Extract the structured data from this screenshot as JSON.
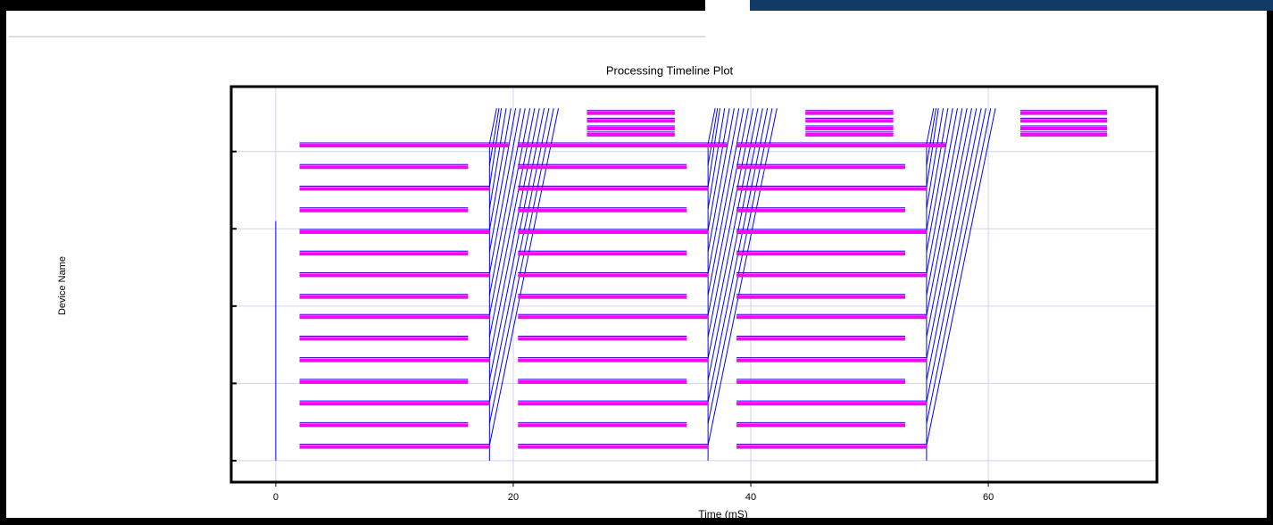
{
  "chart_data": {
    "type": "timeline",
    "title": "Processing Timeline Plot",
    "x_label": "Time (mS)",
    "y_label": "Device Name",
    "xlim": [
      -3.75,
      74.2
    ],
    "xticks": [
      0,
      20,
      40,
      60
    ],
    "ylim": [
      -1.39,
      24.2
    ],
    "yticks": [
      0,
      5,
      10,
      15,
      20
    ],
    "grid": true,
    "bars": {
      "color": "#ff00ff",
      "row": [
        1.0,
        2.4,
        3.8,
        5.2,
        6.6,
        8.0,
        9.4,
        10.7,
        12.1,
        13.5,
        14.9,
        16.3,
        17.7,
        19.1,
        20.5,
        1.0,
        2.4,
        3.8,
        5.2,
        6.6,
        8.0,
        9.4,
        10.7,
        12.1,
        13.5,
        14.9,
        16.3,
        17.7,
        19.1,
        20.5,
        1.0,
        2.4,
        3.8,
        5.2,
        6.6,
        8.0,
        9.4,
        10.7,
        12.1,
        13.5,
        14.9,
        16.3,
        17.7,
        19.1,
        20.5,
        22.6,
        22.1,
        21.6,
        21.2,
        22.6,
        22.1,
        21.6,
        21.2,
        22.6,
        22.1,
        21.6,
        21.2
      ],
      "start": [
        2.0,
        2.0,
        2.0,
        2.0,
        2.0,
        2.0,
        2.0,
        2.0,
        2.0,
        2.0,
        2.0,
        2.0,
        2.0,
        2.0,
        2.0,
        20.4,
        20.4,
        20.4,
        20.4,
        20.4,
        20.4,
        20.4,
        20.4,
        20.4,
        20.4,
        20.4,
        20.4,
        20.4,
        20.4,
        20.4,
        38.8,
        38.8,
        38.8,
        38.8,
        38.8,
        38.8,
        38.8,
        38.8,
        38.8,
        38.8,
        38.8,
        38.8,
        38.8,
        38.8,
        38.8,
        26.2,
        26.2,
        26.2,
        26.2,
        44.6,
        44.6,
        44.6,
        44.6,
        62.7,
        62.7,
        62.7,
        62.7
      ],
      "end": [
        18.0,
        16.2,
        18.0,
        16.2,
        18.0,
        16.2,
        18.0,
        16.2,
        18.0,
        16.2,
        18.0,
        16.2,
        18.0,
        16.2,
        19.6,
        36.4,
        34.6,
        36.4,
        34.6,
        36.4,
        34.6,
        36.4,
        34.6,
        36.4,
        34.6,
        36.4,
        34.6,
        36.4,
        34.6,
        38.0,
        54.8,
        53.0,
        54.8,
        53.0,
        54.8,
        53.0,
        54.8,
        53.0,
        54.8,
        53.0,
        54.8,
        53.0,
        54.8,
        53.0,
        56.4,
        33.6,
        33.6,
        33.6,
        33.6,
        52.0,
        52.0,
        52.0,
        52.0,
        70.0,
        70.0,
        70.0,
        70.0
      ]
    },
    "links": {
      "color": "#0000ff",
      "x1": [
        0,
        18.0,
        36.4,
        54.8,
        18.0,
        18.0,
        18.0,
        18.0,
        18.0,
        18.0,
        18.0,
        18.0,
        18.0,
        18.0,
        18.0,
        18.0,
        18.0,
        18.0,
        18.0,
        36.4,
        36.4,
        36.4,
        36.4,
        36.4,
        36.4,
        36.4,
        36.4,
        36.4,
        36.4,
        36.4,
        36.4,
        36.4,
        36.4,
        36.4,
        54.8,
        54.8,
        54.8,
        54.8,
        54.8,
        54.8,
        54.8,
        54.8,
        54.8,
        54.8,
        54.8,
        54.8,
        54.8,
        54.8,
        54.8
      ],
      "y1": [
        0,
        0,
        0,
        0,
        1.0,
        2.4,
        3.8,
        5.2,
        6.6,
        8.0,
        9.4,
        10.7,
        12.1,
        13.5,
        14.9,
        16.3,
        17.7,
        19.1,
        20.5,
        1.0,
        2.4,
        3.8,
        5.2,
        6.6,
        8.0,
        9.4,
        10.7,
        12.1,
        13.5,
        14.9,
        16.3,
        17.7,
        19.1,
        20.5,
        1.0,
        2.4,
        3.8,
        5.2,
        6.6,
        8.0,
        9.4,
        10.7,
        12.1,
        13.5,
        14.9,
        16.3,
        17.7,
        19.1,
        20.5
      ],
      "x2": [
        0,
        18.0,
        36.4,
        54.8,
        23.8,
        23.4,
        23.0,
        22.6,
        22.2,
        21.8,
        21.4,
        21.0,
        20.6,
        20.2,
        19.8,
        19.4,
        19.0,
        18.8,
        18.6,
        42.2,
        41.8,
        41.4,
        41.0,
        40.6,
        40.2,
        39.8,
        39.4,
        39.0,
        38.6,
        38.2,
        37.8,
        37.4,
        37.2,
        37.0,
        60.6,
        60.2,
        59.8,
        59.4,
        59.0,
        58.6,
        58.2,
        57.8,
        57.4,
        57.0,
        56.6,
        56.2,
        55.8,
        55.6,
        55.4
      ],
      "y2": [
        15.5,
        20.5,
        20.5,
        20.5,
        22.8,
        22.8,
        22.8,
        22.8,
        22.8,
        22.8,
        22.8,
        22.8,
        22.8,
        22.8,
        22.8,
        22.8,
        22.8,
        22.8,
        22.8,
        22.8,
        22.8,
        22.8,
        22.8,
        22.8,
        22.8,
        22.8,
        22.8,
        22.8,
        22.8,
        22.8,
        22.8,
        22.8,
        22.8,
        22.8,
        22.8,
        22.8,
        22.8,
        22.8,
        22.8,
        22.8,
        22.8,
        22.8,
        22.8,
        22.8,
        22.8,
        22.8,
        22.8,
        22.8,
        22.8
      ]
    }
  }
}
